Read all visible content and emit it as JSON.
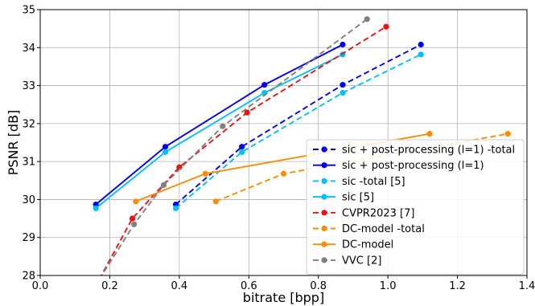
{
  "chart_data": {
    "type": "line",
    "xlabel": "bitrate [bpp]",
    "ylabel": "PSNR [dB]",
    "xlim": [
      0.0,
      1.4
    ],
    "ylim": [
      28,
      35
    ],
    "grid": true,
    "legend_position": "lower-right",
    "x_ticks": [
      "0.0",
      "0.2",
      "0.4",
      "0.6",
      "0.8",
      "1.0",
      "1.2",
      "1.4"
    ],
    "y_ticks": [
      "28",
      "29",
      "30",
      "31",
      "32",
      "33",
      "34",
      "35"
    ],
    "series": [
      {
        "name": "sic + post-processing (l=1) -total",
        "color": "#0000ee",
        "dashed": true,
        "x": [
          0.39,
          0.58,
          0.87,
          1.095
        ],
        "y": [
          29.87,
          31.39,
          33.02,
          34.08
        ]
      },
      {
        "name": "sic + post-processing (l=1)",
        "color": "#0000ee",
        "dashed": false,
        "x": [
          0.16,
          0.36,
          0.645,
          0.87
        ],
        "y": [
          29.87,
          31.39,
          33.02,
          34.08
        ]
      },
      {
        "name": "sic  -total [5]",
        "color": "#00bfff",
        "dashed": true,
        "x": [
          0.39,
          0.58,
          0.87,
          1.095
        ],
        "y": [
          29.77,
          31.25,
          32.81,
          33.82
        ]
      },
      {
        "name": "sic [5]",
        "color": "#00bfff",
        "dashed": false,
        "x": [
          0.16,
          0.36,
          0.645,
          0.87
        ],
        "y": [
          29.77,
          31.25,
          32.81,
          33.82
        ]
      },
      {
        "name": "CVPR2023 [7]",
        "color": "#ee1111",
        "dashed": true,
        "x": [
          0.17,
          0.265,
          0.4,
          0.595,
          0.995
        ],
        "y": [
          27.9,
          29.5,
          30.85,
          32.29,
          34.55
        ]
      },
      {
        "name": "DC-model -total",
        "color": "#ff8c00",
        "dashed": true,
        "x": [
          0.505,
          0.7,
          1.345
        ],
        "y": [
          29.95,
          30.68,
          31.73
        ]
      },
      {
        "name": "DC-model",
        "color": "#ff8c00",
        "dashed": false,
        "x": [
          0.275,
          0.475,
          1.12
        ],
        "y": [
          29.95,
          30.68,
          31.73
        ]
      },
      {
        "name": "VVC [2]",
        "color": "#808080",
        "dashed": true,
        "x": [
          0.17,
          0.27,
          0.355,
          0.525,
          0.94
        ],
        "y": [
          27.9,
          29.35,
          30.38,
          31.93,
          34.75
        ]
      }
    ]
  }
}
